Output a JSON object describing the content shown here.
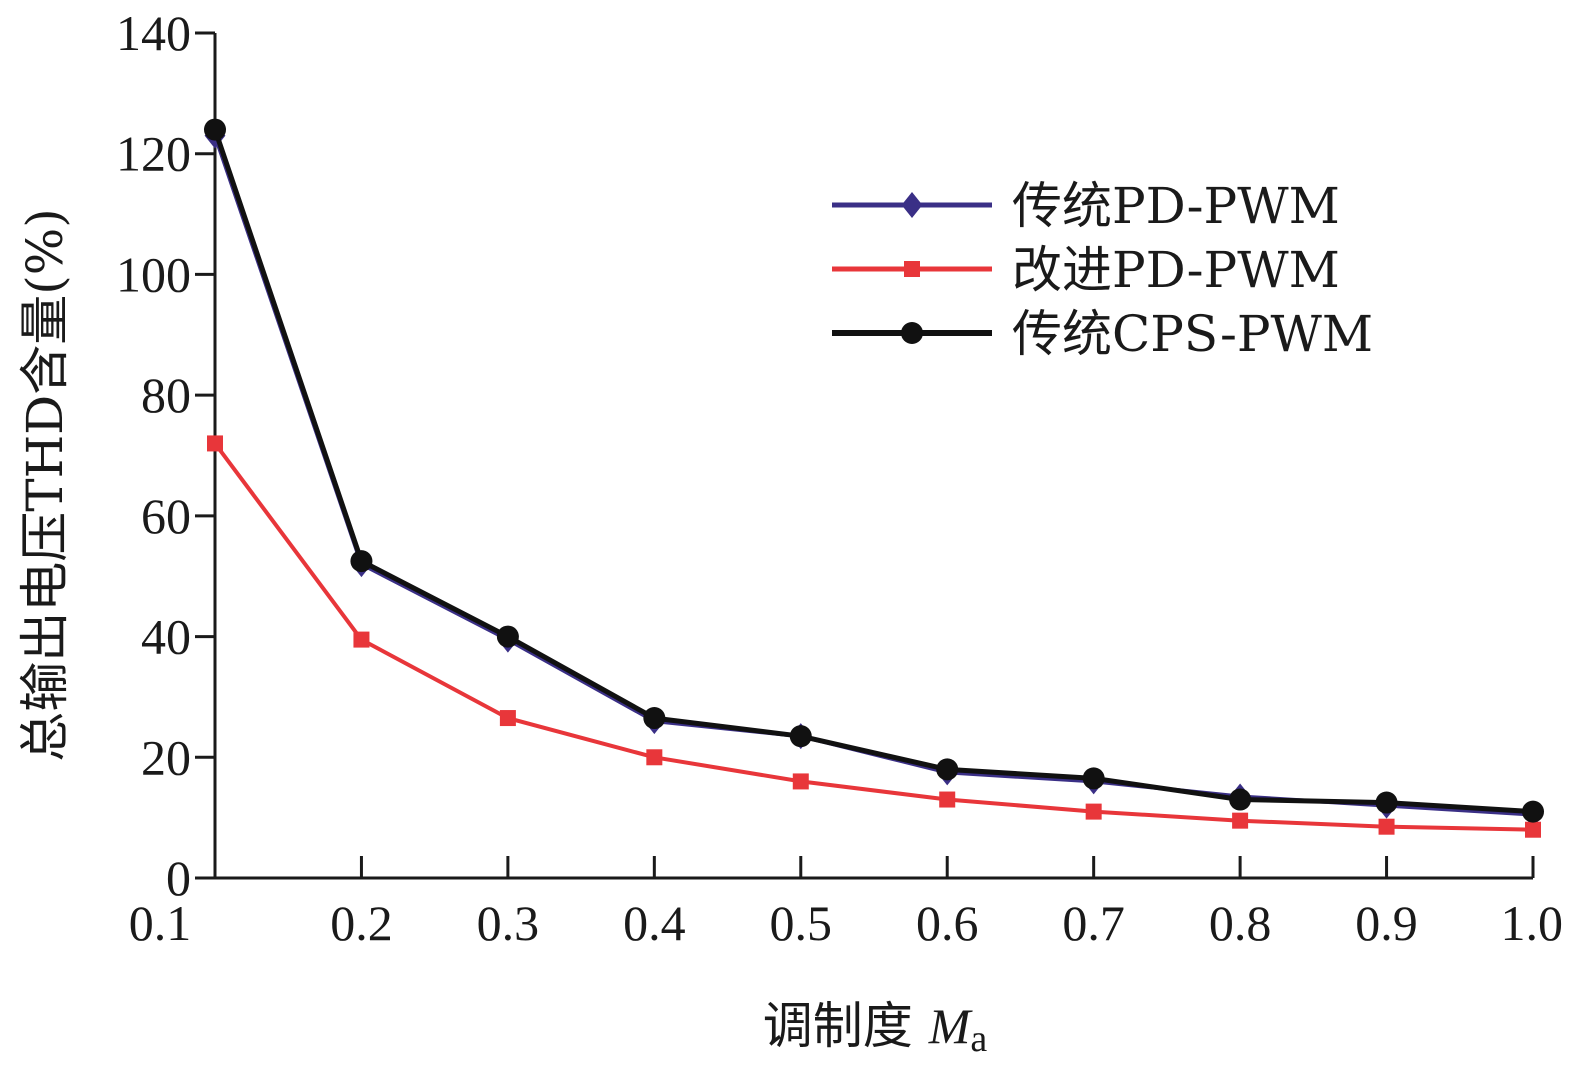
{
  "chart_data": {
    "type": "line",
    "title": "",
    "xlabel": "调制度 ",
    "xlabel_italic": "M",
    "xlabel_sub": "a",
    "ylabel": "总输出电压THD含量(%)",
    "x": [
      0.1,
      0.2,
      0.3,
      0.4,
      0.5,
      0.6,
      0.7,
      0.8,
      0.9,
      1.0
    ],
    "xticks": [
      "0.1",
      "0.2",
      "0.3",
      "0.4",
      "0.5",
      "0.6",
      "0.7",
      "0.8",
      "0.9",
      "1.0"
    ],
    "yticks": [
      "0",
      "20",
      "40",
      "60",
      "80",
      "100",
      "120",
      "140"
    ],
    "ylim": [
      0,
      140
    ],
    "grid": false,
    "legend_position": "top-right",
    "series": [
      {
        "name": "传统PD-PWM",
        "color": "#3a2f86",
        "marker": "diamond",
        "values": [
          123,
          52,
          39.5,
          26,
          23.5,
          17.5,
          16,
          13.5,
          12,
          10.5
        ]
      },
      {
        "name": "改进PD-PWM",
        "color": "#e8363a",
        "marker": "square",
        "values": [
          72,
          39.5,
          26.5,
          20,
          16,
          13,
          11,
          9.5,
          8.5,
          8
        ]
      },
      {
        "name": "传统CPS-PWM",
        "color": "#111111",
        "marker": "circle",
        "values": [
          124,
          52.5,
          40,
          26.5,
          23.5,
          18,
          16.5,
          13,
          12.5,
          11
        ]
      }
    ]
  }
}
